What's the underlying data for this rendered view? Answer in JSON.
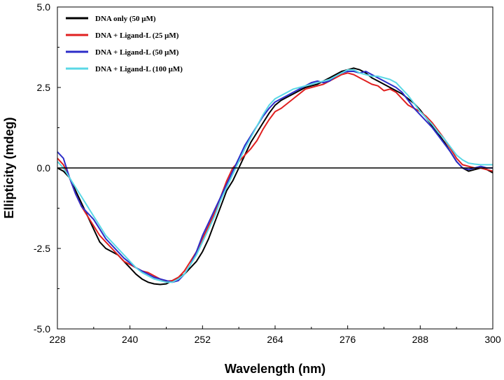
{
  "chart_data": {
    "type": "line",
    "title": "",
    "xlabel": "Wavelength (nm)",
    "ylabel": "Ellipticity (mdeg)",
    "xlim": [
      228,
      300
    ],
    "ylim": [
      -5.0,
      5.0
    ],
    "x_ticks": [
      228,
      240,
      252,
      264,
      276,
      288,
      300
    ],
    "x_tick_labels": [
      "228",
      "240",
      "252",
      "264",
      "276",
      "288",
      "300"
    ],
    "y_ticks": [
      -5.0,
      -2.5,
      0.0,
      2.5,
      5.0
    ],
    "y_tick_labels": [
      "-5.0",
      "-2.5",
      "0.0",
      "2.5",
      "5.0"
    ],
    "grid": false,
    "zero_line": true,
    "legend_position": "top-left",
    "series": [
      {
        "name": "DNA only (50 μM)",
        "color": "#000000",
        "points": [
          [
            228,
            0.0
          ],
          [
            229,
            -0.1
          ],
          [
            230,
            -0.3
          ],
          [
            231,
            -0.7
          ],
          [
            232,
            -1.1
          ],
          [
            233,
            -1.5
          ],
          [
            234,
            -1.9
          ],
          [
            235,
            -2.3
          ],
          [
            236,
            -2.5
          ],
          [
            237,
            -2.6
          ],
          [
            238,
            -2.7
          ],
          [
            239,
            -2.9
          ],
          [
            240,
            -3.1
          ],
          [
            241,
            -3.3
          ],
          [
            242,
            -3.45
          ],
          [
            243,
            -3.55
          ],
          [
            244,
            -3.6
          ],
          [
            245,
            -3.62
          ],
          [
            246,
            -3.6
          ],
          [
            247,
            -3.5
          ],
          [
            248,
            -3.4
          ],
          [
            249,
            -3.3
          ],
          [
            250,
            -3.1
          ],
          [
            251,
            -2.9
          ],
          [
            252,
            -2.6
          ],
          [
            253,
            -2.2
          ],
          [
            254,
            -1.7
          ],
          [
            255,
            -1.2
          ],
          [
            256,
            -0.7
          ],
          [
            257,
            -0.4
          ],
          [
            258,
            0.0
          ],
          [
            259,
            0.4
          ],
          [
            260,
            0.8
          ],
          [
            261,
            1.1
          ],
          [
            262,
            1.4
          ],
          [
            263,
            1.7
          ],
          [
            264,
            1.95
          ],
          [
            265,
            2.1
          ],
          [
            266,
            2.2
          ],
          [
            267,
            2.3
          ],
          [
            268,
            2.4
          ],
          [
            269,
            2.5
          ],
          [
            270,
            2.55
          ],
          [
            271,
            2.6
          ],
          [
            272,
            2.7
          ],
          [
            273,
            2.8
          ],
          [
            274,
            2.9
          ],
          [
            275,
            3.0
          ],
          [
            276,
            3.05
          ],
          [
            277,
            3.1
          ],
          [
            278,
            3.05
          ],
          [
            279,
            2.95
          ],
          [
            280,
            2.8
          ],
          [
            281,
            2.7
          ],
          [
            282,
            2.6
          ],
          [
            283,
            2.5
          ],
          [
            284,
            2.4
          ],
          [
            285,
            2.3
          ],
          [
            286,
            2.15
          ],
          [
            287,
            2.0
          ],
          [
            288,
            1.8
          ],
          [
            289,
            1.55
          ],
          [
            290,
            1.3
          ],
          [
            291,
            1.05
          ],
          [
            292,
            0.8
          ],
          [
            293,
            0.5
          ],
          [
            294,
            0.2
          ],
          [
            295,
            0.0
          ],
          [
            296,
            -0.1
          ],
          [
            297,
            -0.05
          ],
          [
            298,
            0.0
          ],
          [
            299,
            -0.05
          ],
          [
            300,
            -0.15
          ]
        ]
      },
      {
        "name": "DNA + Ligand-L (25 μM)",
        "color": "#e02020",
        "points": [
          [
            228,
            0.3
          ],
          [
            229,
            0.1
          ],
          [
            230,
            -0.3
          ],
          [
            231,
            -0.8
          ],
          [
            232,
            -1.2
          ],
          [
            233,
            -1.5
          ],
          [
            234,
            -1.8
          ],
          [
            235,
            -2.1
          ],
          [
            236,
            -2.3
          ],
          [
            237,
            -2.5
          ],
          [
            238,
            -2.7
          ],
          [
            239,
            -2.9
          ],
          [
            240,
            -3.0
          ],
          [
            241,
            -3.1
          ],
          [
            242,
            -3.2
          ],
          [
            243,
            -3.25
          ],
          [
            244,
            -3.35
          ],
          [
            245,
            -3.45
          ],
          [
            246,
            -3.52
          ],
          [
            247,
            -3.5
          ],
          [
            248,
            -3.4
          ],
          [
            249,
            -3.2
          ],
          [
            250,
            -2.9
          ],
          [
            251,
            -2.6
          ],
          [
            252,
            -2.2
          ],
          [
            253,
            -1.8
          ],
          [
            254,
            -1.4
          ],
          [
            255,
            -0.9
          ],
          [
            256,
            -0.4
          ],
          [
            257,
            0.0
          ],
          [
            258,
            0.2
          ],
          [
            259,
            0.4
          ],
          [
            260,
            0.6
          ],
          [
            261,
            0.85
          ],
          [
            262,
            1.2
          ],
          [
            263,
            1.5
          ],
          [
            264,
            1.75
          ],
          [
            265,
            1.85
          ],
          [
            266,
            2.0
          ],
          [
            267,
            2.15
          ],
          [
            268,
            2.3
          ],
          [
            269,
            2.45
          ],
          [
            270,
            2.5
          ],
          [
            271,
            2.55
          ],
          [
            272,
            2.6
          ],
          [
            273,
            2.7
          ],
          [
            274,
            2.8
          ],
          [
            275,
            2.9
          ],
          [
            276,
            2.95
          ],
          [
            277,
            2.9
          ],
          [
            278,
            2.8
          ],
          [
            279,
            2.7
          ],
          [
            280,
            2.6
          ],
          [
            281,
            2.55
          ],
          [
            282,
            2.4
          ],
          [
            283,
            2.45
          ],
          [
            284,
            2.35
          ],
          [
            285,
            2.15
          ],
          [
            286,
            1.95
          ],
          [
            287,
            1.85
          ],
          [
            288,
            1.75
          ],
          [
            289,
            1.6
          ],
          [
            290,
            1.4
          ],
          [
            291,
            1.15
          ],
          [
            292,
            0.9
          ],
          [
            293,
            0.6
          ],
          [
            294,
            0.3
          ],
          [
            295,
            0.1
          ],
          [
            296,
            0.05
          ],
          [
            297,
            0.0
          ],
          [
            298,
            0.0
          ],
          [
            299,
            -0.05
          ],
          [
            300,
            -0.1
          ]
        ]
      },
      {
        "name": "DNA + Ligand-L (50 μM)",
        "color": "#2d2dc8",
        "points": [
          [
            228,
            0.5
          ],
          [
            229,
            0.3
          ],
          [
            230,
            -0.3
          ],
          [
            231,
            -0.8
          ],
          [
            232,
            -1.2
          ],
          [
            233,
            -1.4
          ],
          [
            234,
            -1.6
          ],
          [
            235,
            -1.9
          ],
          [
            236,
            -2.2
          ],
          [
            237,
            -2.4
          ],
          [
            238,
            -2.6
          ],
          [
            239,
            -2.8
          ],
          [
            240,
            -2.95
          ],
          [
            241,
            -3.1
          ],
          [
            242,
            -3.2
          ],
          [
            243,
            -3.3
          ],
          [
            244,
            -3.4
          ],
          [
            245,
            -3.45
          ],
          [
            246,
            -3.5
          ],
          [
            247,
            -3.55
          ],
          [
            248,
            -3.5
          ],
          [
            249,
            -3.3
          ],
          [
            250,
            -3.0
          ],
          [
            251,
            -2.6
          ],
          [
            252,
            -2.1
          ],
          [
            253,
            -1.7
          ],
          [
            254,
            -1.3
          ],
          [
            255,
            -0.9
          ],
          [
            256,
            -0.5
          ],
          [
            257,
            -0.1
          ],
          [
            258,
            0.3
          ],
          [
            259,
            0.7
          ],
          [
            260,
            1.0
          ],
          [
            261,
            1.3
          ],
          [
            262,
            1.6
          ],
          [
            263,
            1.85
          ],
          [
            264,
            2.05
          ],
          [
            265,
            2.15
          ],
          [
            266,
            2.25
          ],
          [
            267,
            2.35
          ],
          [
            268,
            2.45
          ],
          [
            269,
            2.55
          ],
          [
            270,
            2.65
          ],
          [
            271,
            2.7
          ],
          [
            272,
            2.65
          ],
          [
            273,
            2.7
          ],
          [
            274,
            2.85
          ],
          [
            275,
            2.95
          ],
          [
            276,
            3.0
          ],
          [
            277,
            3.0
          ],
          [
            278,
            2.95
          ],
          [
            279,
            3.0
          ],
          [
            280,
            2.9
          ],
          [
            281,
            2.8
          ],
          [
            282,
            2.7
          ],
          [
            283,
            2.6
          ],
          [
            284,
            2.5
          ],
          [
            285,
            2.35
          ],
          [
            286,
            2.1
          ],
          [
            287,
            1.85
          ],
          [
            288,
            1.65
          ],
          [
            289,
            1.45
          ],
          [
            290,
            1.25
          ],
          [
            291,
            1.0
          ],
          [
            292,
            0.75
          ],
          [
            293,
            0.5
          ],
          [
            294,
            0.2
          ],
          [
            295,
            0.0
          ],
          [
            296,
            -0.05
          ],
          [
            297,
            0.0
          ],
          [
            298,
            0.05
          ],
          [
            299,
            0.0
          ],
          [
            300,
            0.0
          ]
        ]
      },
      {
        "name": "DNA + Ligand-L (100 μM)",
        "color": "#5ad8e6",
        "points": [
          [
            228,
            0.2
          ],
          [
            229,
            0.0
          ],
          [
            230,
            -0.3
          ],
          [
            231,
            -0.6
          ],
          [
            232,
            -0.9
          ],
          [
            233,
            -1.2
          ],
          [
            234,
            -1.5
          ],
          [
            235,
            -1.8
          ],
          [
            236,
            -2.1
          ],
          [
            237,
            -2.3
          ],
          [
            238,
            -2.5
          ],
          [
            239,
            -2.7
          ],
          [
            240,
            -2.9
          ],
          [
            241,
            -3.1
          ],
          [
            242,
            -3.25
          ],
          [
            243,
            -3.35
          ],
          [
            244,
            -3.45
          ],
          [
            245,
            -3.5
          ],
          [
            246,
            -3.55
          ],
          [
            247,
            -3.55
          ],
          [
            248,
            -3.45
          ],
          [
            249,
            -3.3
          ],
          [
            250,
            -3.0
          ],
          [
            251,
            -2.7
          ],
          [
            252,
            -2.3
          ],
          [
            253,
            -1.9
          ],
          [
            254,
            -1.5
          ],
          [
            255,
            -1.0
          ],
          [
            256,
            -0.6
          ],
          [
            257,
            -0.2
          ],
          [
            258,
            0.2
          ],
          [
            259,
            0.6
          ],
          [
            260,
            0.95
          ],
          [
            261,
            1.3
          ],
          [
            262,
            1.65
          ],
          [
            263,
            1.95
          ],
          [
            264,
            2.15
          ],
          [
            265,
            2.25
          ],
          [
            266,
            2.35
          ],
          [
            267,
            2.45
          ],
          [
            268,
            2.5
          ],
          [
            269,
            2.55
          ],
          [
            270,
            2.6
          ],
          [
            271,
            2.65
          ],
          [
            272,
            2.7
          ],
          [
            273,
            2.75
          ],
          [
            274,
            2.85
          ],
          [
            275,
            2.95
          ],
          [
            276,
            3.05
          ],
          [
            277,
            3.05
          ],
          [
            278,
            2.95
          ],
          [
            279,
            2.9
          ],
          [
            280,
            2.85
          ],
          [
            281,
            2.85
          ],
          [
            282,
            2.8
          ],
          [
            283,
            2.75
          ],
          [
            284,
            2.65
          ],
          [
            285,
            2.45
          ],
          [
            286,
            2.25
          ],
          [
            287,
            2.0
          ],
          [
            288,
            1.75
          ],
          [
            289,
            1.55
          ],
          [
            290,
            1.35
          ],
          [
            291,
            1.1
          ],
          [
            292,
            0.9
          ],
          [
            293,
            0.65
          ],
          [
            294,
            0.4
          ],
          [
            295,
            0.25
          ],
          [
            296,
            0.15
          ],
          [
            297,
            0.12
          ],
          [
            298,
            0.1
          ],
          [
            299,
            0.1
          ],
          [
            300,
            0.1
          ]
        ]
      }
    ]
  }
}
